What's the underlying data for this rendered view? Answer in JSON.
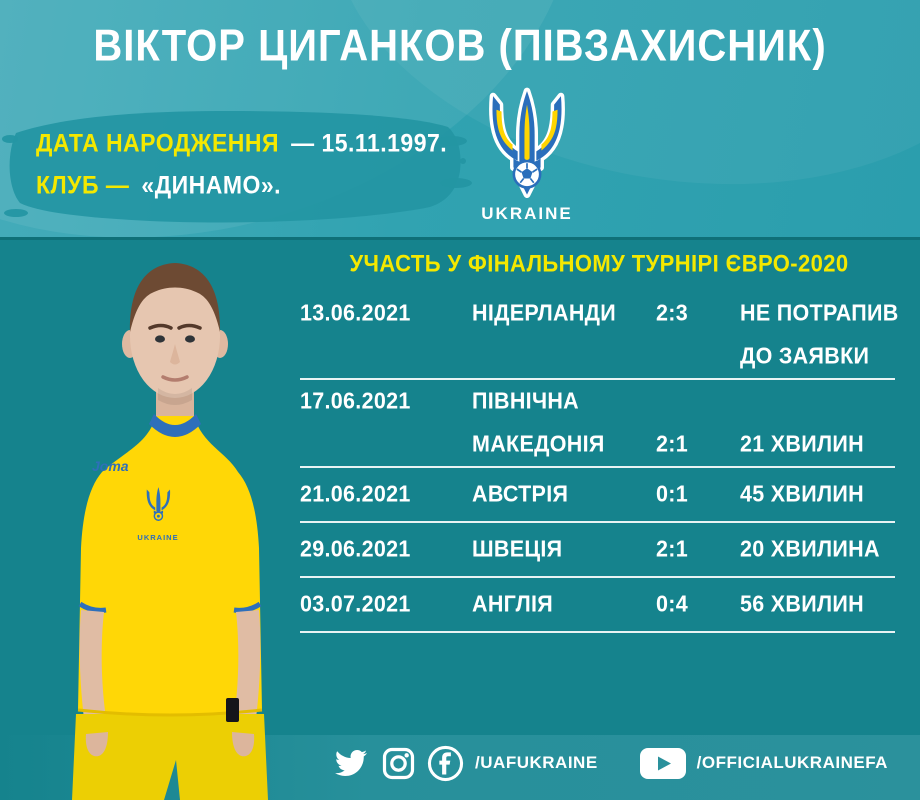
{
  "page": {
    "title": "ВІКТОР ЦИГАНКОВ (ПІВЗАХИСНИК)"
  },
  "player_info": {
    "dob_label": "ДАТА НАРОДЖЕННЯ",
    "dob_value": "— 15.11.1997.",
    "club_label": "КЛУБ —",
    "club_value": "«ДИНАМО»."
  },
  "federation": {
    "name": "UKRAINE",
    "logo_icon": "ukraine-trident-logo"
  },
  "player_photo": {
    "description": "Player portrait in yellow Ukraine home kit",
    "jersey_brand": "Joma",
    "crest_label": "UKRAINE"
  },
  "matches_table": {
    "title": "УЧАСТЬ У ФІНАЛЬНОМУ ТУРНІРІ ЄВРО-2020",
    "columns": [
      "date",
      "opponent",
      "score",
      "result"
    ],
    "rows": [
      {
        "lines": [
          {
            "date": "13.06.2021",
            "opponent": "НІДЕРЛАНДИ",
            "score": "2:3",
            "result": "НЕ ПОТРАПИВ"
          },
          {
            "result": "ДО ЗАЯВКИ"
          }
        ]
      },
      {
        "lines": [
          {
            "date": "17.06.2021",
            "opponent": "ПІВНІЧНА"
          },
          {
            "opponent": "МАКЕДОНІЯ",
            "score": "2:1",
            "result": "21 ХВИЛИН"
          }
        ]
      },
      {
        "lines": [
          {
            "date": "21.06.2021",
            "opponent": "АВСТРІЯ",
            "score": "0:1",
            "result": "45 ХВИЛИН"
          }
        ]
      },
      {
        "lines": [
          {
            "date": "29.06.2021",
            "opponent": "ШВЕЦІЯ",
            "score": "2:1",
            "result": "20 ХВИЛИНА"
          }
        ]
      },
      {
        "lines": [
          {
            "date": "03.07.2021",
            "opponent": "АНГЛІЯ",
            "score": "0:4",
            "result": "56 ХВИЛИН"
          }
        ]
      }
    ]
  },
  "footer": {
    "social_icons": [
      "twitter-icon",
      "instagram-icon",
      "facebook-icon"
    ],
    "facebook_handle": "/UAFUKRAINE",
    "youtube_icon": "youtube-icon",
    "youtube_handle": "/OFFICIALUKRAINEFA"
  },
  "colors": {
    "background_top": "#31a3b1",
    "panel": "#15838d",
    "brush": "#2496a3",
    "accent_yellow": "#f4e800",
    "text_white": "#ffffff",
    "brand_blue": "#2a6ebb",
    "jersey_yellow": "#ffd706"
  }
}
